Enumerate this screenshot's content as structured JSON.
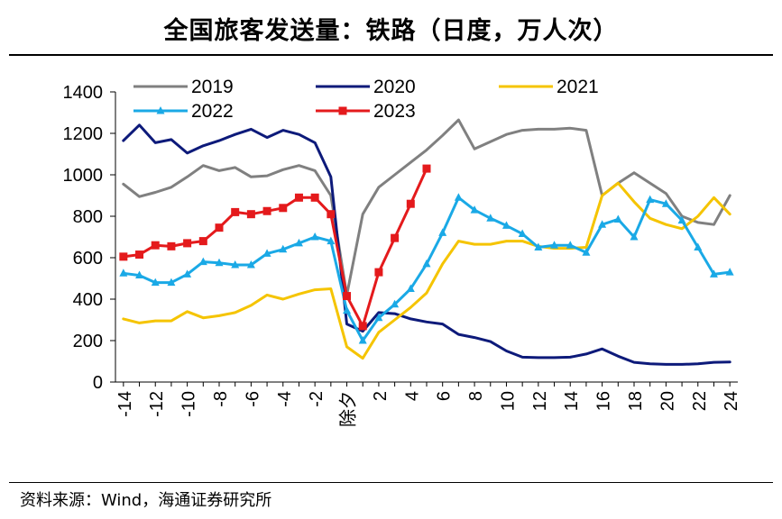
{
  "title": "全国旅客发送量：铁路（日度，万人次）",
  "source": "资料来源：Wind，海通证券研究所",
  "chart_data": {
    "type": "line",
    "xlabel": "",
    "ylabel": "",
    "x": [
      -14,
      -13,
      -12,
      -11,
      -10,
      -9,
      -8,
      -7,
      -6,
      -5,
      -4,
      -3,
      -2,
      -1,
      0,
      1,
      2,
      3,
      4,
      5,
      6,
      7,
      8,
      9,
      10,
      11,
      12,
      13,
      14,
      15,
      16,
      17,
      18,
      19,
      20,
      21,
      22,
      23,
      24
    ],
    "xlim": [
      -14.5,
      24.5
    ],
    "ylim": [
      0,
      1400
    ],
    "y_ticks": [
      0,
      200,
      400,
      600,
      800,
      1000,
      1200,
      1400
    ],
    "x_ticks": [
      "-14",
      "-12",
      "-10",
      "-8",
      "-6",
      "-4",
      "-2",
      "除夕",
      "2",
      "4",
      "6",
      "8",
      "10",
      "12",
      "14",
      "16",
      "18",
      "20",
      "22",
      "24"
    ],
    "x_tick_values": [
      -14,
      -12,
      -10,
      -8,
      -6,
      -4,
      -2,
      0,
      2,
      4,
      6,
      8,
      10,
      12,
      14,
      16,
      18,
      20,
      22,
      24
    ],
    "grid": false,
    "legend_position": "top",
    "series": [
      {
        "name": "2019",
        "color": "#808080",
        "marker": "none",
        "values": [
          955,
          895,
          915,
          940,
          990,
          1045,
          1020,
          1035,
          990,
          995,
          1025,
          1045,
          1020,
          900,
          420,
          810,
          940,
          1000,
          1060,
          1120,
          1190,
          1265,
          1125,
          1160,
          1195,
          1215,
          1220,
          1220,
          1225,
          1215,
          900,
          960,
          1010,
          960,
          910,
          800,
          770,
          760,
          900
        ]
      },
      {
        "name": "2020",
        "color": "#0d1a7a",
        "marker": "none",
        "values": [
          1165,
          1240,
          1155,
          1170,
          1105,
          1140,
          1165,
          1195,
          1220,
          1180,
          1215,
          1195,
          1155,
          990,
          280,
          245,
          335,
          330,
          305,
          290,
          280,
          230,
          215,
          195,
          150,
          120,
          118,
          118,
          120,
          135,
          160,
          125,
          95,
          88,
          85,
          85,
          88,
          95,
          97
        ]
      },
      {
        "name": "2021",
        "color": "#f5c400",
        "marker": "none",
        "values": [
          305,
          285,
          295,
          295,
          340,
          310,
          320,
          335,
          370,
          420,
          400,
          425,
          445,
          450,
          170,
          115,
          240,
          300,
          360,
          430,
          570,
          680,
          665,
          665,
          680,
          680,
          655,
          645,
          645,
          650,
          900,
          960,
          870,
          790,
          760,
          740,
          800,
          890,
          810
        ]
      },
      {
        "name": "2022",
        "color": "#1aa9e6",
        "marker": "triangle",
        "values": [
          525,
          515,
          480,
          480,
          520,
          580,
          575,
          565,
          565,
          620,
          640,
          670,
          700,
          680,
          345,
          200,
          310,
          375,
          450,
          570,
          720,
          890,
          830,
          790,
          755,
          715,
          650,
          660,
          660,
          625,
          760,
          785,
          700,
          880,
          860,
          780,
          650,
          520,
          530
        ]
      },
      {
        "name": "2023",
        "color": "#e41a1c",
        "marker": "square",
        "values": [
          605,
          615,
          660,
          655,
          670,
          680,
          745,
          820,
          810,
          825,
          840,
          890,
          890,
          810,
          415,
          270,
          530,
          695,
          860,
          1030,
          null,
          null,
          null,
          null,
          null,
          null,
          null,
          null,
          null,
          null,
          null,
          null,
          null,
          null,
          null,
          null,
          null,
          null,
          null
        ]
      }
    ]
  }
}
